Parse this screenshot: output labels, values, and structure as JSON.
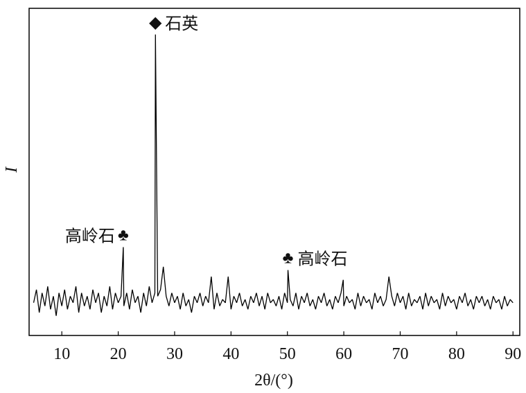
{
  "chart_data": {
    "type": "line",
    "xlabel": "2θ/(°)",
    "ylabel": "I",
    "color": "#000000",
    "x": [
      5,
      5.5,
      6,
      6.5,
      7,
      7.5,
      8,
      8.5,
      9,
      9.5,
      10,
      10.5,
      11,
      11.5,
      12,
      12.5,
      13,
      13.5,
      14,
      14.5,
      15,
      15.5,
      16,
      16.5,
      17,
      17.5,
      18,
      18.5,
      19,
      19.5,
      20,
      20.5,
      20.9,
      21,
      21.5,
      22,
      22.5,
      23,
      23.5,
      24,
      24.5,
      25,
      25.5,
      26,
      26.5,
      26.6,
      27,
      27.5,
      28,
      28.5,
      29,
      29.5,
      30,
      30.5,
      31,
      31.5,
      32,
      32.5,
      33,
      33.5,
      34,
      34.5,
      35,
      35.5,
      36,
      36.5,
      37,
      37.5,
      38,
      38.5,
      39,
      39.5,
      40,
      40.5,
      41,
      41.5,
      42,
      42.5,
      43,
      43.5,
      44,
      44.5,
      45,
      45.5,
      46,
      46.5,
      47,
      47.5,
      48,
      48.5,
      49,
      49.5,
      50,
      50.1,
      50.5,
      51,
      51.5,
      52,
      52.5,
      53,
      53.5,
      54,
      54.5,
      55,
      55.5,
      56,
      56.5,
      57,
      57.5,
      58,
      58.5,
      59,
      59.5,
      59.9,
      60,
      60.5,
      61,
      61.5,
      62,
      62.5,
      63,
      63.5,
      64,
      64.5,
      65,
      65.5,
      66,
      66.5,
      67,
      67.5,
      68,
      68.5,
      69,
      69.5,
      70,
      70.5,
      71,
      71.5,
      72,
      72.5,
      73,
      73.5,
      74,
      74.5,
      75,
      75.5,
      76,
      76.5,
      77,
      77.5,
      78,
      78.5,
      79,
      79.5,
      80,
      80.5,
      81,
      81.5,
      82,
      82.5,
      83,
      83.5,
      84,
      84.5,
      85,
      85.5,
      86,
      86.5,
      87,
      87.5,
      88,
      88.5,
      89,
      89.5,
      90
    ],
    "values": [
      10,
      14,
      7,
      13,
      9,
      15,
      8,
      12,
      6,
      13,
      9,
      14,
      8,
      12,
      10,
      15,
      7,
      13,
      9,
      12,
      8,
      14,
      10,
      13,
      7,
      12,
      9,
      15,
      8,
      13,
      10,
      12,
      27,
      9,
      13,
      8,
      14,
      10,
      12,
      7,
      13,
      9,
      15,
      10,
      13,
      92,
      12,
      14,
      21,
      12,
      9,
      13,
      10,
      12,
      8,
      13,
      9,
      11,
      7,
      12,
      10,
      13,
      9,
      12,
      10,
      18,
      8,
      13,
      9,
      11,
      10,
      18,
      8,
      12,
      10,
      13,
      9,
      11,
      8,
      12,
      10,
      13,
      9,
      12,
      8,
      13,
      10,
      11,
      9,
      12,
      8,
      13,
      10,
      20,
      11,
      9,
      13,
      8,
      12,
      10,
      13,
      9,
      11,
      8,
      12,
      10,
      13,
      9,
      11,
      8,
      12,
      10,
      13,
      17,
      9,
      12,
      10,
      11,
      8,
      13,
      9,
      12,
      10,
      11,
      8,
      13,
      10,
      12,
      9,
      11,
      18,
      12,
      9,
      13,
      10,
      12,
      8,
      13,
      9,
      11,
      10,
      12,
      8,
      13,
      9,
      12,
      10,
      11,
      8,
      13,
      9,
      12,
      10,
      11,
      8,
      12,
      10,
      13,
      9,
      11,
      8,
      12,
      10,
      12,
      9,
      11,
      8,
      12,
      10,
      11,
      8,
      12,
      9,
      11,
      10
    ],
    "xlim": [
      4.2,
      91.2
    ],
    "ylim": [
      0,
      100
    ],
    "xticks": [
      10,
      20,
      30,
      40,
      50,
      60,
      70,
      80,
      90
    ],
    "annotations": [
      {
        "symbol": "◆",
        "text": "石英",
        "x": 26.6
      },
      {
        "symbol": "♣",
        "text": "高岭石",
        "x": 20.9
      },
      {
        "symbol": "♣",
        "text": "高岭石",
        "x": 50.1
      }
    ]
  }
}
